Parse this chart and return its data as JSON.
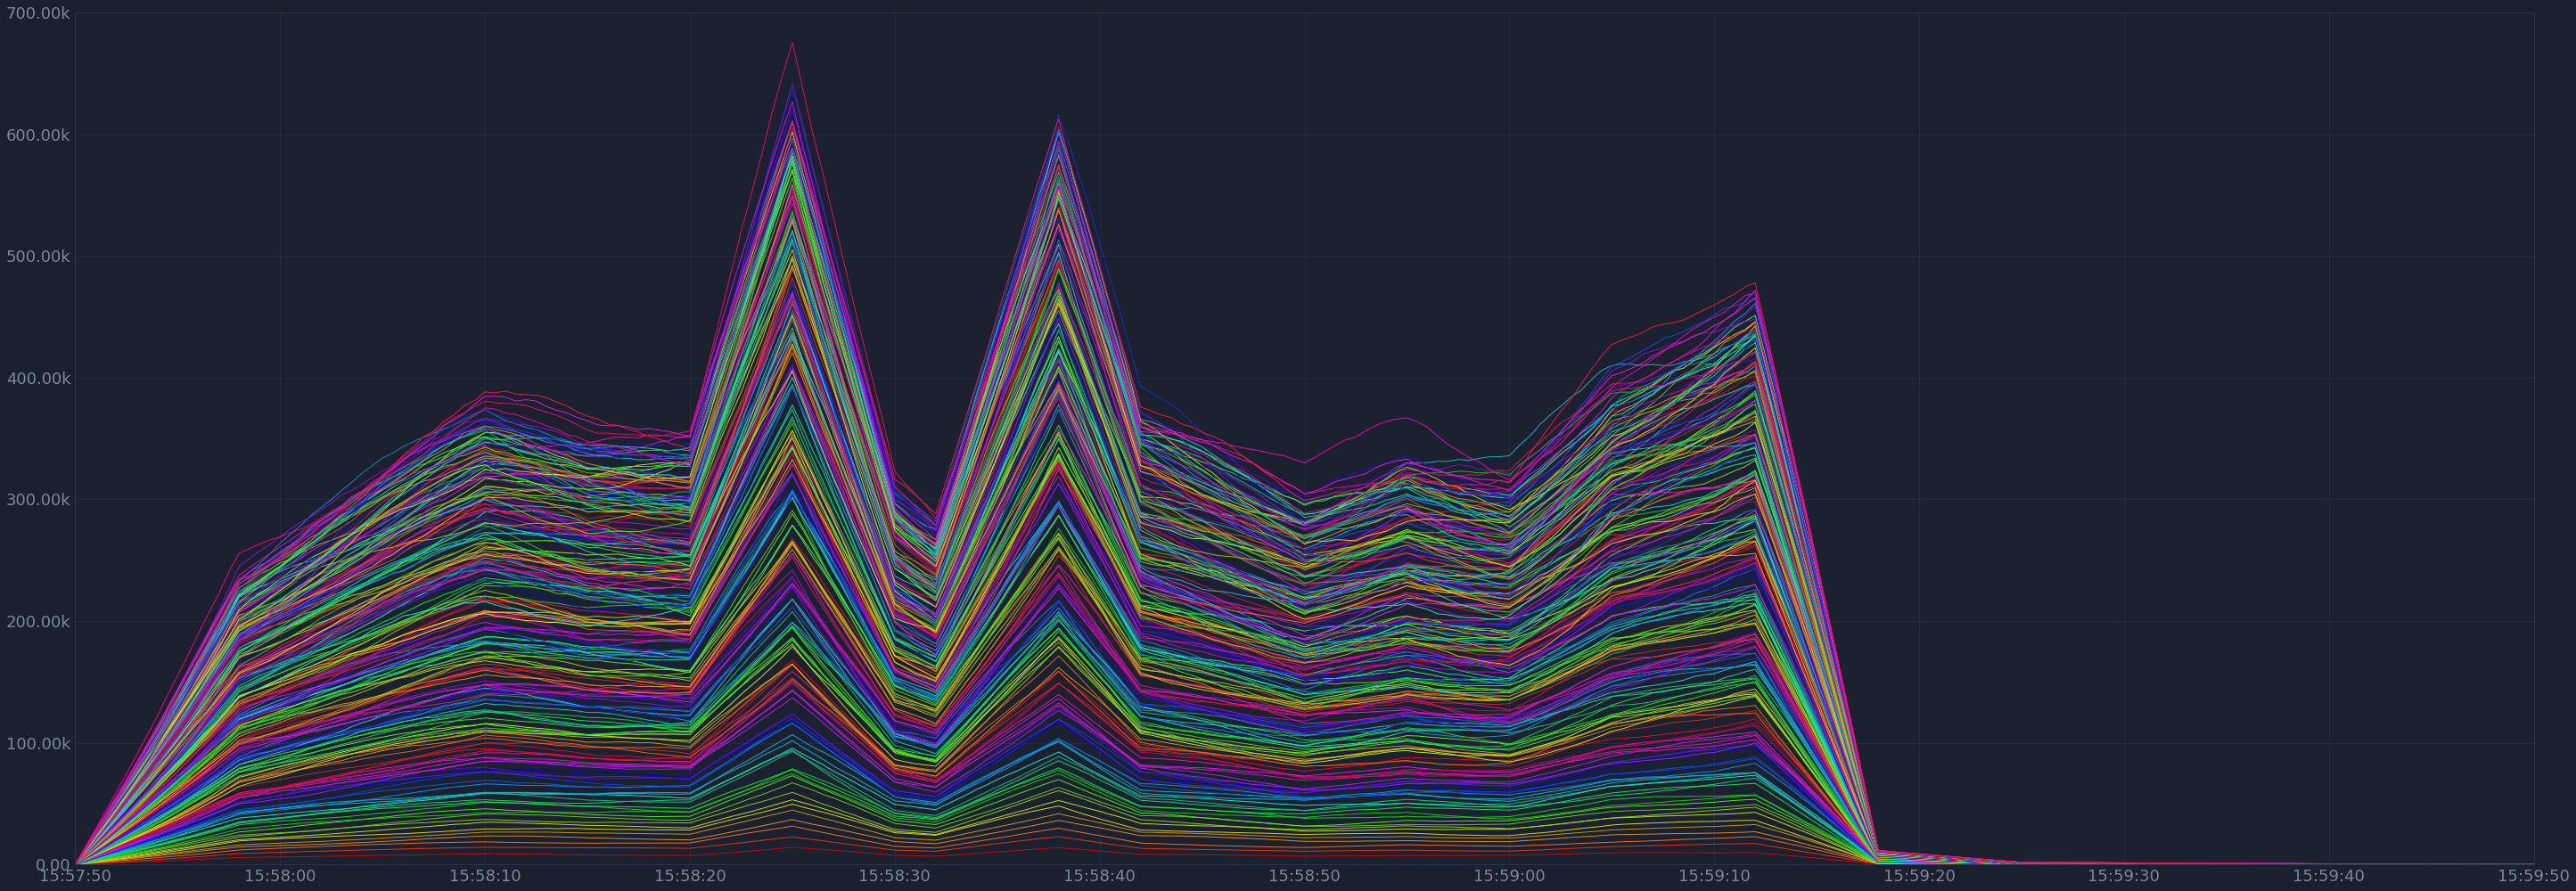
{
  "background_color": "#1a202e",
  "plot_bg_color": "#1c2130",
  "grid_color": "#2a3348",
  "text_color": "#7a8899",
  "x_start": 0,
  "x_end": 120,
  "x_tick_positions": [
    0,
    10,
    20,
    30,
    40,
    50,
    60,
    70,
    80,
    90,
    100,
    110,
    120
  ],
  "x_tick_labels": [
    "15:57:50",
    "15:58:00",
    "15:58:10",
    "15:58:20",
    "15:58:30",
    "15:58:40",
    "15:58:50",
    "15:59:00",
    "15:59:10",
    "15:59:20",
    "15:59:30",
    "15:59:40",
    "15:59:50"
  ],
  "y_min": 0,
  "y_max": 700000,
  "y_ticks": [
    0,
    100000,
    200000,
    300000,
    400000,
    500000,
    600000,
    700000
  ],
  "y_tick_labels": [
    "0.00",
    "100.00k",
    "200.00k",
    "300.00k",
    "400.00k",
    "500.00k",
    "600.00k",
    "700.00k"
  ],
  "num_series": 220,
  "num_points": 241
}
